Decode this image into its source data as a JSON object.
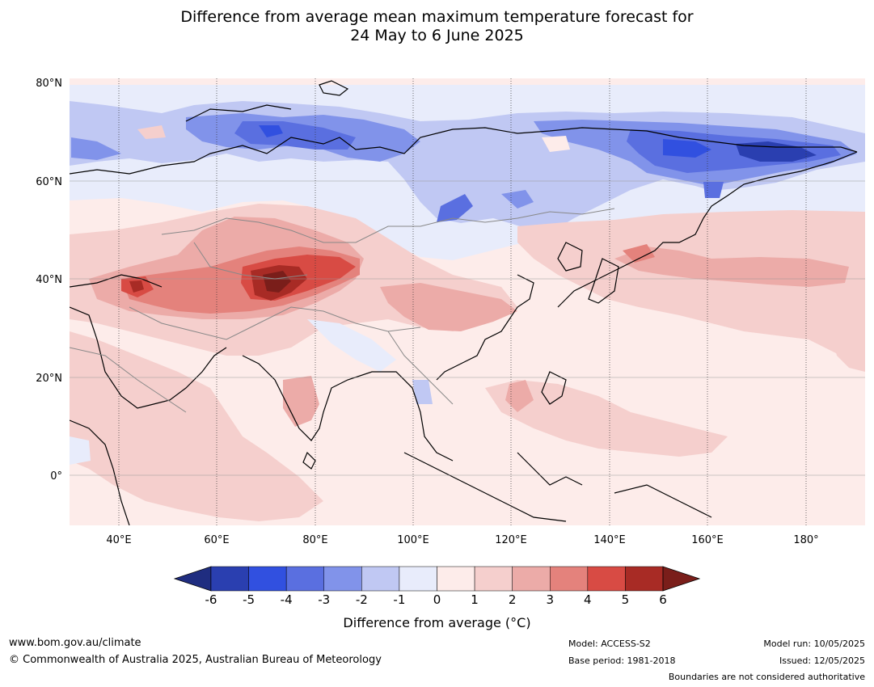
{
  "title": {
    "line1": "Difference from average mean maximum temperature forecast for",
    "line2": "24 May to 6 June 2025"
  },
  "map": {
    "lat_labels": [
      "80°N",
      "60°N",
      "40°N",
      "20°N",
      "0°"
    ],
    "lon_labels": [
      "40°E",
      "60°E",
      "80°E",
      "100°E",
      "120°E",
      "140°E",
      "160°E",
      "180°"
    ],
    "extent": {
      "lon": [
        30,
        192
      ],
      "lat": [
        -10,
        80
      ]
    }
  },
  "colorbar": {
    "ticks": [
      "-6",
      "-5",
      "-4",
      "-3",
      "-2",
      "-1",
      "0",
      "1",
      "2",
      "3",
      "4",
      "5",
      "6"
    ],
    "colors": [
      "#1f2d80",
      "#2a3fb0",
      "#3150e0",
      "#5a6fe0",
      "#8193ea",
      "#c0c8f3",
      "#e8ecfb",
      "#fdecea",
      "#f5cfcd",
      "#ecaba8",
      "#e4827c",
      "#d84b44",
      "#a82b25",
      "#7a1e1a"
    ],
    "label": "Difference from average (°C)"
  },
  "footer": {
    "website": "www.bom.gov.au/climate",
    "copyright": "© Commonwealth of Australia 2025, Australian Bureau of Meteorology",
    "model": "Model: ACCESS-S2",
    "base_period": "Base period: 1981-2018",
    "model_run": "Model run: 10/05/2025",
    "issued": "Issued: 12/05/2025",
    "boundaries": "Boundaries are not considered authoritative"
  }
}
